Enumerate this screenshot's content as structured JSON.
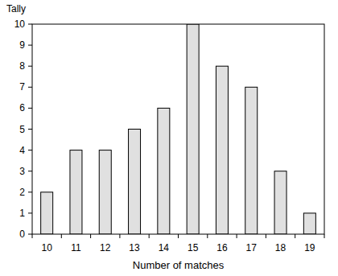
{
  "chart_data": {
    "type": "bar",
    "x_label": "Number of matches",
    "y_label": "Tally",
    "categories": [
      "10",
      "11",
      "12",
      "13",
      "14",
      "15",
      "16",
      "17",
      "18",
      "19"
    ],
    "values": [
      2,
      4,
      4,
      5,
      6,
      10,
      8,
      7,
      3,
      1
    ],
    "color": "#e0e0e0",
    "ylim": [
      0,
      10
    ],
    "yticks": [
      0,
      1,
      2,
      3,
      4,
      5,
      6,
      7,
      8,
      9,
      10
    ],
    "grid": false
  }
}
